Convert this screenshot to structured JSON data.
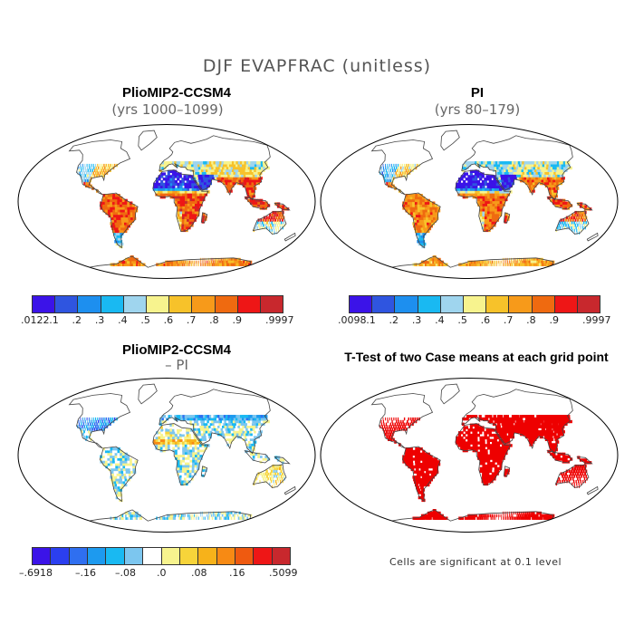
{
  "main_title": "DJF EVAPFRAC (unitless)",
  "panels": [
    {
      "title": "PlioMIP2-CCSM4",
      "subtitle": "(yrs 1000–1099)",
      "fill": "model"
    },
    {
      "title": "PI",
      "subtitle": "(yrs 80–179)",
      "fill": "pi"
    },
    {
      "title": "PlioMIP2-CCSM4",
      "subtitle": "– PI",
      "fill": "diff"
    },
    {
      "title": "T-Test of two Case means at each grid point",
      "subtitle": "",
      "fill": "ttest"
    }
  ],
  "colorbars": [
    {
      "colors": [
        "#3b13e8",
        "#2f55e0",
        "#1d8fef",
        "#19b9f2",
        "#9fd5ee",
        "#f7f38e",
        "#f7c22a",
        "#f79a1a",
        "#ef6a10",
        "#ee1616",
        "#c8282d"
      ],
      "ticks": [
        ".0122",
        ".1",
        ".2",
        ".3",
        ".4",
        ".5",
        ".6",
        ".7",
        ".8",
        ".9",
        ".9997"
      ]
    },
    {
      "colors": [
        "#3b13e8",
        "#2f55e0",
        "#1d8fef",
        "#19b9f2",
        "#9fd5ee",
        "#f7f38e",
        "#f7c22a",
        "#f79a1a",
        "#ef6a10",
        "#ee1616",
        "#c8282d"
      ],
      "ticks": [
        ".0098",
        ".1",
        ".2",
        ".3",
        ".4",
        ".5",
        ".6",
        ".7",
        ".8",
        ".9",
        ".9997"
      ]
    },
    {
      "colors": [
        "#3b13e8",
        "#2b3ff0",
        "#2f6ff0",
        "#1d9aef",
        "#19b9f2",
        "#7cc6ef",
        "#ffffff",
        "#f7f38e",
        "#f7d43a",
        "#f7b21a",
        "#f78a14",
        "#ef5a10",
        "#ee1616",
        "#c8282d"
      ],
      "ticks": [
        "–.6918",
        "–.16",
        "–.08",
        ".0",
        ".08",
        ".16",
        ".5099"
      ]
    }
  ],
  "significance_note": "Cells are significant at 0.1 level",
  "colors": {
    "land_outline": "#444444",
    "ttest_fill": "#ee0000",
    "desert_blue": "#3b35e0"
  }
}
